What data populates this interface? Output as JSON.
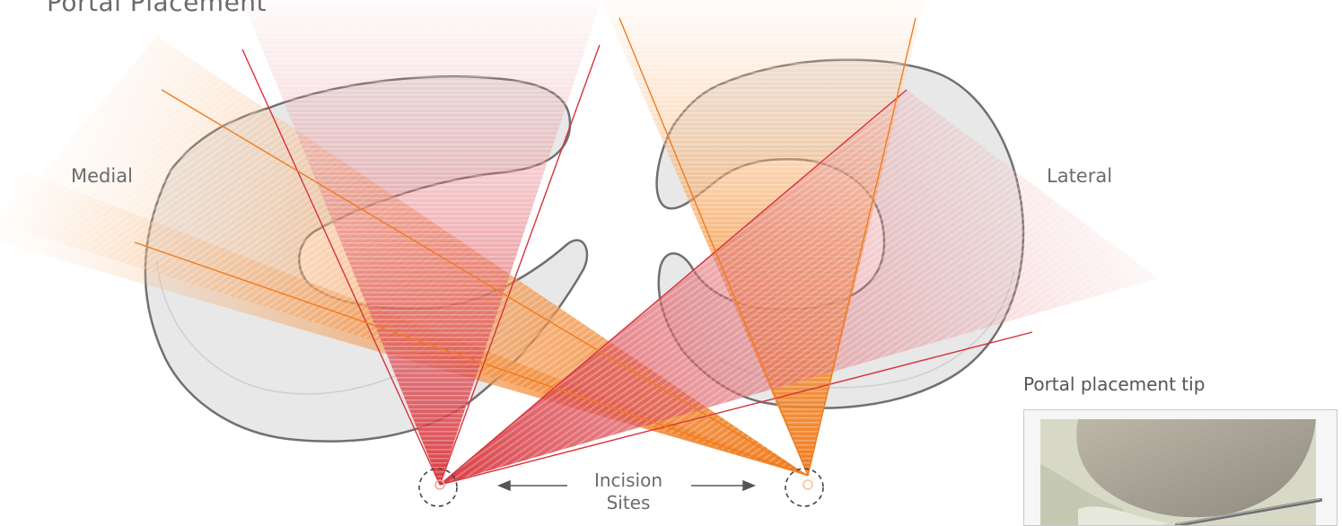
{
  "title": "Portal Placement",
  "labels": {
    "medial": "Medial",
    "lateral": "Lateral",
    "incision_line1": "Incision",
    "incision_line2": "Sites"
  },
  "tip": {
    "title": "Portal placement tip"
  },
  "colors": {
    "red_beam": "#d8323a",
    "orange_beam": "#f07c1e",
    "outline": "#707070",
    "bone_fill": "#e8e8e8"
  }
}
